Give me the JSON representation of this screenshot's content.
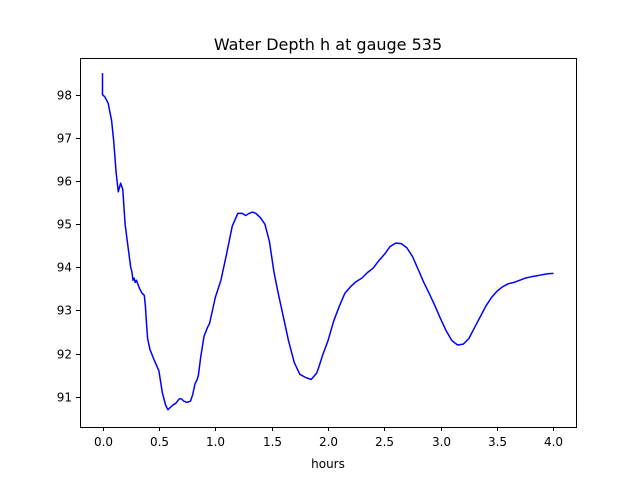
{
  "chart_data": {
    "type": "line",
    "title": "Water Depth h at gauge 535",
    "xlabel": "hours",
    "ylabel": "",
    "xlim": [
      -0.2,
      4.2
    ],
    "ylim": [
      90.3,
      98.85
    ],
    "xticks": [
      0.0,
      0.5,
      1.0,
      1.5,
      2.0,
      2.5,
      3.0,
      3.5,
      4.0
    ],
    "xtick_labels": [
      "0.0",
      "0.5",
      "1.0",
      "1.5",
      "2.0",
      "2.5",
      "3.0",
      "3.5",
      "4.0"
    ],
    "yticks": [
      91,
      92,
      93,
      94,
      95,
      96,
      97,
      98
    ],
    "ytick_labels": [
      "91",
      "92",
      "93",
      "94",
      "95",
      "96",
      "97",
      "98"
    ],
    "grid": false,
    "series": [
      {
        "color": "#0000ff",
        "x": [
          0.0,
          0.0,
          0.02,
          0.05,
          0.08,
          0.1,
          0.12,
          0.14,
          0.16,
          0.18,
          0.2,
          0.22,
          0.25,
          0.26,
          0.27,
          0.28,
          0.29,
          0.3,
          0.33,
          0.35,
          0.37,
          0.38,
          0.39,
          0.4,
          0.42,
          0.45,
          0.5,
          0.53,
          0.56,
          0.58,
          0.6,
          0.62,
          0.65,
          0.68,
          0.7,
          0.72,
          0.75,
          0.78,
          0.8,
          0.82,
          0.84,
          0.85,
          0.87,
          0.9,
          0.93,
          0.95,
          1.0,
          1.05,
          1.1,
          1.15,
          1.2,
          1.24,
          1.27,
          1.3,
          1.33,
          1.36,
          1.4,
          1.44,
          1.48,
          1.52,
          1.55,
          1.6,
          1.65,
          1.7,
          1.75,
          1.8,
          1.85,
          1.9,
          1.92,
          1.95,
          2.0,
          2.05,
          2.1,
          2.15,
          2.2,
          2.25,
          2.3,
          2.35,
          2.4,
          2.45,
          2.5,
          2.55,
          2.6,
          2.65,
          2.7,
          2.75,
          2.8,
          2.85,
          2.9,
          2.95,
          3.0,
          3.05,
          3.1,
          3.15,
          3.2,
          3.25,
          3.3,
          3.35,
          3.4,
          3.45,
          3.5,
          3.55,
          3.6,
          3.65,
          3.7,
          3.75,
          3.8,
          3.85,
          3.9,
          3.95,
          4.0
        ],
        "y": [
          98.5,
          98.0,
          97.95,
          97.8,
          97.4,
          96.9,
          96.2,
          95.75,
          95.95,
          95.8,
          95.0,
          94.6,
          94.0,
          93.9,
          93.7,
          93.75,
          93.65,
          93.7,
          93.5,
          93.4,
          93.35,
          93.1,
          92.7,
          92.35,
          92.1,
          91.9,
          91.6,
          91.1,
          90.8,
          90.7,
          90.75,
          90.8,
          90.85,
          90.95,
          90.95,
          90.9,
          90.87,
          90.9,
          91.05,
          91.3,
          91.4,
          91.5,
          91.9,
          92.4,
          92.6,
          92.7,
          93.3,
          93.7,
          94.3,
          94.95,
          95.25,
          95.25,
          95.2,
          95.25,
          95.28,
          95.25,
          95.15,
          95.0,
          94.6,
          93.9,
          93.5,
          92.9,
          92.3,
          91.8,
          91.52,
          91.45,
          91.4,
          91.55,
          91.7,
          91.95,
          92.3,
          92.75,
          93.1,
          93.4,
          93.55,
          93.67,
          93.75,
          93.88,
          93.98,
          94.15,
          94.3,
          94.48,
          94.56,
          94.55,
          94.45,
          94.25,
          93.95,
          93.65,
          93.38,
          93.1,
          92.8,
          92.52,
          92.3,
          92.2,
          92.22,
          92.35,
          92.6,
          92.85,
          93.1,
          93.3,
          93.45,
          93.55,
          93.62,
          93.65,
          93.7,
          93.75,
          93.78,
          93.8,
          93.83,
          93.85,
          93.86
        ]
      }
    ]
  }
}
